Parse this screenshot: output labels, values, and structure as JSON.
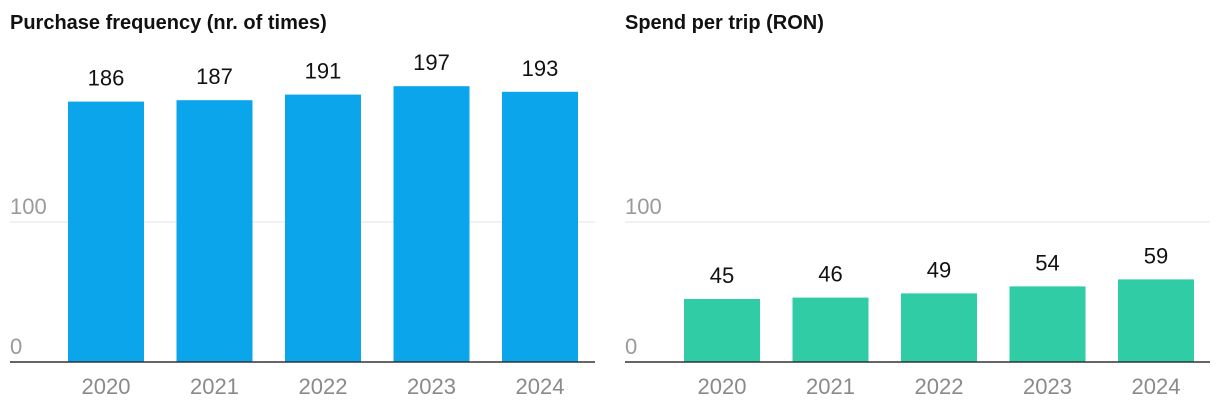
{
  "chart_data": [
    {
      "type": "bar",
      "title": "Purchase frequency (nr. of times)",
      "xlabel": "",
      "ylabel": "",
      "categories": [
        "2020",
        "2021",
        "2022",
        "2023",
        "2024"
      ],
      "values": [
        186,
        187,
        191,
        197,
        193
      ],
      "data_labels": [
        "186",
        "187",
        "191",
        "197",
        "193"
      ],
      "yticks": [
        0,
        100
      ],
      "ytick_labels": [
        "0",
        "100"
      ],
      "ylim": [
        0,
        200
      ],
      "color": "#0ba5ec",
      "grid": true,
      "legend": "none"
    },
    {
      "type": "bar",
      "title": "Spend per trip (RON)",
      "xlabel": "",
      "ylabel": "",
      "categories": [
        "2020",
        "2021",
        "2022",
        "2023",
        "2024"
      ],
      "values": [
        45,
        46,
        49,
        54,
        59
      ],
      "data_labels": [
        "45",
        "46",
        "49",
        "54",
        "59"
      ],
      "yticks": [
        0,
        100
      ],
      "ytick_labels": [
        "0",
        "100"
      ],
      "ylim": [
        0,
        200
      ],
      "color": "#2fcca6",
      "grid": true,
      "legend": "none"
    }
  ]
}
